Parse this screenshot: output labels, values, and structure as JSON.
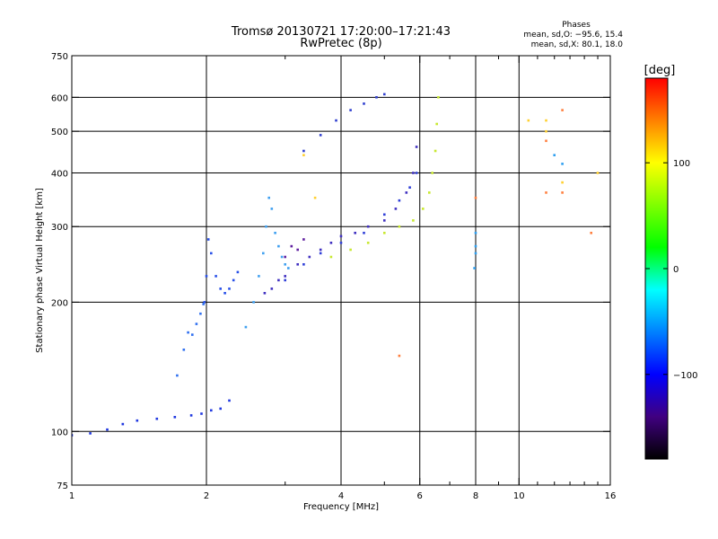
{
  "chart_data": {
    "type": "scatter",
    "title": "Tromsø 20130721 17:20:00–17:21:43",
    "subtitle": "RwPretec (8p)",
    "xlabel": "Frequency [MHz]",
    "ylabel": "Stationary phase Virtual Height [km]",
    "xscale": "log",
    "yscale": "log",
    "xlim": [
      1,
      16
    ],
    "ylim": [
      75,
      750
    ],
    "x_ticks": [
      1,
      2,
      4,
      6,
      8,
      10,
      16
    ],
    "x_tick_labels": [
      "1",
      "2",
      "4",
      "6",
      "8",
      "10",
      "16"
    ],
    "x_grid": [
      2,
      4,
      6,
      8,
      10
    ],
    "x_minor_ticks": [
      3,
      5,
      7,
      9,
      11,
      12,
      13,
      14,
      15
    ],
    "y_ticks": [
      75,
      100,
      200,
      300,
      400,
      500,
      600,
      750
    ],
    "y_tick_labels": [
      "75",
      "100",
      "200",
      "300",
      "400",
      "500",
      "600",
      "750"
    ],
    "y_grid": [
      100,
      200,
      300,
      400,
      500,
      600
    ],
    "grid": true,
    "info": {
      "heading": "Phases",
      "line1": "mean, sd,O: −95.6, 15.4",
      "line2": "mean, sd,X:  80.1, 18.0"
    },
    "colorbar": {
      "label": "[deg]",
      "range": [
        -180,
        180
      ],
      "ticks": [
        100,
        0,
        -100
      ],
      "tick_labels": [
        "100",
        "0",
        "−100"
      ],
      "colors": [
        "#ff0000",
        "#ff8000",
        "#ffff00",
        "#80ff00",
        "#00ff00",
        "#00ffff",
        "#0080ff",
        "#0000ff",
        "#400080",
        "#000000"
      ]
    },
    "series": [
      {
        "color": "#2038e0",
        "x": [
          1.0,
          1.1,
          1.2,
          1.3,
          1.4,
          1.55,
          1.7,
          1.85,
          1.95,
          2.05,
          2.15,
          2.25
        ],
        "y": [
          98,
          99,
          101,
          104,
          106,
          107,
          108,
          109,
          110,
          112,
          113,
          118
        ]
      },
      {
        "color": "#2850e8",
        "x": [
          1.98,
          2.0,
          2.02,
          2.05,
          2.1,
          2.15,
          2.2,
          2.25,
          2.3,
          2.35
        ],
        "y": [
          200,
          230,
          280,
          260,
          230,
          215,
          210,
          215,
          225,
          235
        ]
      },
      {
        "color": "#3070f0",
        "x": [
          1.72,
          1.78,
          1.82,
          1.86,
          1.9,
          1.94,
          1.97
        ],
        "y": [
          135,
          155,
          170,
          168,
          178,
          188,
          198
        ]
      },
      {
        "color": "#40a0f0",
        "x": [
          2.45,
          2.55,
          2.62,
          2.68,
          2.72,
          2.76,
          2.8,
          2.85,
          2.9,
          2.95,
          3.0,
          3.05
        ],
        "y": [
          175,
          200,
          230,
          260,
          300,
          350,
          330,
          290,
          270,
          255,
          245,
          240
        ]
      },
      {
        "color": "#4030c0",
        "x": [
          2.7,
          2.8,
          2.9,
          3.0,
          3.2,
          3.4,
          3.6,
          3.8,
          4.0,
          4.3,
          4.6,
          5.0,
          5.3,
          5.6,
          5.8,
          5.9
        ],
        "y": [
          210,
          215,
          225,
          230,
          245,
          255,
          265,
          275,
          285,
          290,
          300,
          310,
          330,
          360,
          400,
          460
        ]
      },
      {
        "color": "#3040d8",
        "x": [
          3.0,
          3.3,
          3.6,
          4.0,
          4.5,
          5.0,
          5.4,
          5.7,
          5.9
        ],
        "y": [
          225,
          245,
          260,
          275,
          290,
          320,
          345,
          370,
          400
        ]
      },
      {
        "color": "#3040d0",
        "x": [
          3.3,
          3.6,
          3.9,
          4.2,
          4.5,
          4.8,
          5.0
        ],
        "y": [
          450,
          490,
          530,
          560,
          580,
          600,
          610
        ]
      },
      {
        "color": "#c8e830",
        "x": [
          3.8,
          4.2,
          4.6,
          5.0,
          5.4,
          5.8,
          6.1,
          6.3,
          6.4,
          6.5,
          6.55,
          6.6
        ],
        "y": [
          255,
          265,
          275,
          290,
          300,
          310,
          330,
          360,
          400,
          450,
          520,
          600
        ]
      },
      {
        "color": "#6020a0",
        "x": [
          3.0,
          3.1,
          3.2,
          3.3
        ],
        "y": [
          255,
          270,
          265,
          280
        ]
      },
      {
        "color": "#30a0f0",
        "x": [
          8.0,
          8.0,
          8.0,
          7.95,
          12.5,
          12.0
        ],
        "y": [
          290,
          270,
          260,
          240,
          420,
          440
        ]
      },
      {
        "color": "#ff8040",
        "x": [
          8.0,
          11.5,
          12.5,
          14.5,
          12.5,
          11.5,
          5.4
        ],
        "y": [
          350,
          360,
          360,
          290,
          560,
          475,
          150
        ]
      },
      {
        "color": "#ffd030",
        "x": [
          12.5,
          11.5,
          15.0,
          11.5,
          10.5,
          3.5,
          3.3
        ],
        "y": [
          380,
          500,
          400,
          530,
          530,
          350,
          440
        ]
      }
    ]
  }
}
